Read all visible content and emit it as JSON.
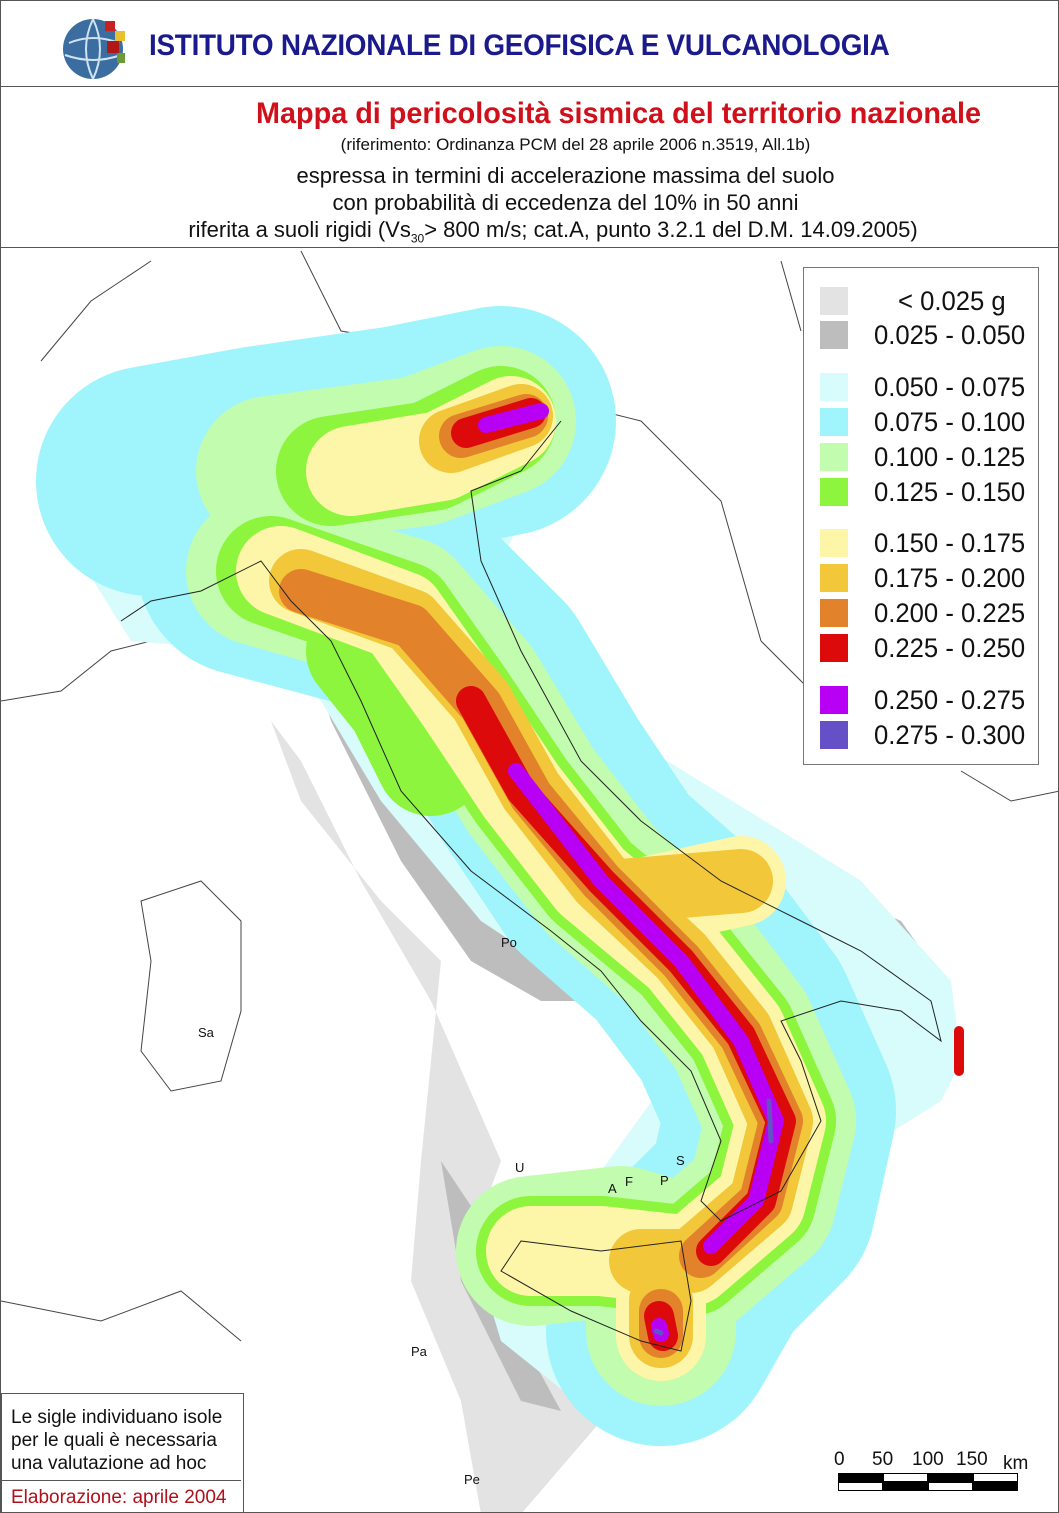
{
  "header": {
    "institute": "ISTITUTO NAZIONALE DI GEOFISICA E VULCANOLOGIA",
    "logo": "ingv-globe-logo"
  },
  "titles": {
    "main": "Mappa di pericolosità sismica del territorio nazionale",
    "reference": "(riferimento: Ordinanza PCM del 28 aprile 2006 n.3519, All.1b)",
    "line1": "espressa in termini di accelerazione massima del suolo",
    "line2": "con probabilità di eccedenza del 10% in 50 anni",
    "line3a": "riferita a suoli rigidi (Vs",
    "line3sub": "30",
    "line3b": "> 800 m/s; cat.A, punto 3.2.1 del D.M. 14.09.2005)"
  },
  "legend": {
    "items": [
      {
        "label": "< 0.025 g",
        "color": "#e3e3e3"
      },
      {
        "label": "0.025 - 0.050",
        "color": "#bdbdbd"
      },
      {
        "label": "0.050 - 0.075",
        "color": "#d8fbfb"
      },
      {
        "label": "0.075 - 0.100",
        "color": "#9ff5fb"
      },
      {
        "label": "0.100 - 0.125",
        "color": "#c2fcae"
      },
      {
        "label": "0.125 - 0.150",
        "color": "#8df53d"
      },
      {
        "label": "0.150 - 0.175",
        "color": "#fdf6a8"
      },
      {
        "label": "0.175 - 0.200",
        "color": "#f2c73a"
      },
      {
        "label": "0.200 - 0.225",
        "color": "#e2822a"
      },
      {
        "label": "0.225 - 0.250",
        "color": "#dc0a0a"
      },
      {
        "label": "0.250 - 0.275",
        "color": "#b800f5"
      },
      {
        "label": "0.275 - 0.300",
        "color": "#6650c8"
      }
    ]
  },
  "islands": [
    "Po",
    "Sa",
    "U",
    "A",
    "F",
    "P",
    "S",
    "Pa",
    "Pe"
  ],
  "note": {
    "text": [
      "Le sigle individuano isole",
      "per le quali è necessaria",
      "una valutazione ad hoc"
    ],
    "elaboration": "Elaborazione: aprile 2004"
  },
  "scale": {
    "ticks": [
      "0",
      "50",
      "100",
      "150"
    ],
    "unit": "km"
  }
}
